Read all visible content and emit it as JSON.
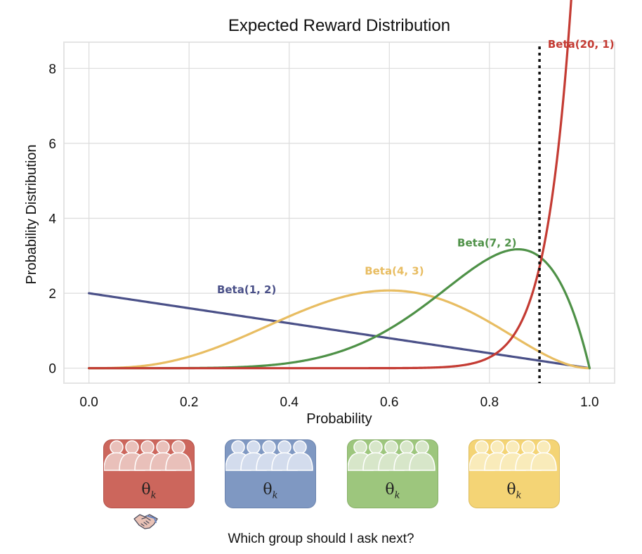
{
  "chart_data": {
    "type": "line",
    "title": "Expected Reward Distribution",
    "xlabel": "Probability",
    "ylabel": "Probability Distribution",
    "xlim": [
      -0.05,
      1.05
    ],
    "ylim": [
      -0.4,
      8.7
    ],
    "xticks": [
      0.0,
      0.2,
      0.4,
      0.6,
      0.8,
      1.0
    ],
    "xtick_labels": [
      "0.0",
      "0.2",
      "0.4",
      "0.6",
      "0.8",
      "1.0"
    ],
    "yticks": [
      0,
      2,
      4,
      6,
      8
    ],
    "ytick_labels": [
      "0",
      "2",
      "4",
      "6",
      "8"
    ],
    "grid": true,
    "series": [
      {
        "name": "Beta(1, 2)",
        "alpha": 1,
        "beta": 2,
        "color": "#4a5088",
        "label_x": 0.315,
        "label_y": 2.0
      },
      {
        "name": "Beta(4, 3)",
        "alpha": 4,
        "beta": 3,
        "color": "#e8bd62",
        "label_x": 0.61,
        "label_y": 2.5
      },
      {
        "name": "Beta(7, 2)",
        "alpha": 7,
        "beta": 2,
        "color": "#4e9147",
        "label_x": 0.795,
        "label_y": 3.25
      },
      {
        "name": "Beta(20, 1)",
        "alpha": 20,
        "beta": 1,
        "color": "#c43b33",
        "label_x": 0.983,
        "label_y": 8.55
      }
    ],
    "threshold_line": {
      "x": 0.9,
      "style": "dotted",
      "color": "#111111"
    }
  },
  "groups": [
    {
      "theta": "θ",
      "subscript": "k",
      "top_color": "#e9c0ba",
      "bottom_color": "#cc665c",
      "border": "#b5524a"
    },
    {
      "theta": "θ",
      "subscript": "k",
      "top_color": "#d3dced",
      "bottom_color": "#7f98c2",
      "border": "#6c84ae"
    },
    {
      "theta": "θ",
      "subscript": "k",
      "top_color": "#d7e6c9",
      "bottom_color": "#9dc67d",
      "border": "#88b06a"
    },
    {
      "theta": "θ",
      "subscript": "k",
      "top_color": "#f9ebba",
      "bottom_color": "#f4d475",
      "border": "#dcbc5e"
    }
  ],
  "selected_group_icon": "handshake-icon",
  "question": "Which group should I ask next?"
}
